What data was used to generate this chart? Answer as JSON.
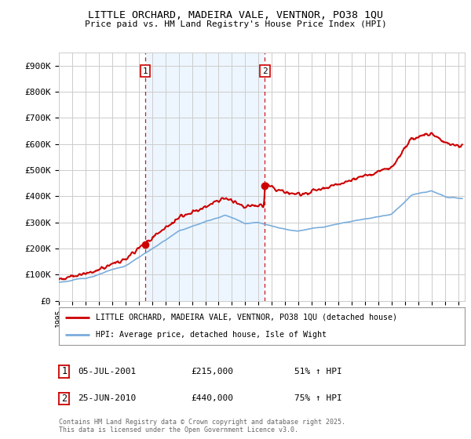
{
  "title": "LITTLE ORCHARD, MADEIRA VALE, VENTNOR, PO38 1QU",
  "subtitle": "Price paid vs. HM Land Registry's House Price Index (HPI)",
  "ylabel_ticks": [
    "£0",
    "£100K",
    "£200K",
    "£300K",
    "£400K",
    "£500K",
    "£600K",
    "£700K",
    "£800K",
    "£900K"
  ],
  "ytick_values": [
    0,
    100000,
    200000,
    300000,
    400000,
    500000,
    600000,
    700000,
    800000,
    900000
  ],
  "ylim": [
    0,
    950000
  ],
  "xlim_start": 1995.0,
  "xlim_end": 2025.5,
  "t_p1": 2001.504,
  "t_p2": 2010.479,
  "p1": 215000,
  "p2": 440000,
  "legend_line1": "LITTLE ORCHARD, MADEIRA VALE, VENTNOR, PO38 1QU (detached house)",
  "legend_line2": "HPI: Average price, detached house, Isle of Wight",
  "ann_label1": "1",
  "ann_date1": "05-JUL-2001",
  "ann_price1": "£215,000",
  "ann_hpi1": "51% ↑ HPI",
  "ann_label2": "2",
  "ann_date2": "25-JUN-2010",
  "ann_price2": "£440,000",
  "ann_hpi2": "75% ↑ HPI",
  "copyright": "Contains HM Land Registry data © Crown copyright and database right 2025.\nThis data is licensed under the Open Government Licence v3.0.",
  "red_color": "#cc0000",
  "blue_color": "#7aaddb",
  "shading_color": "#ddeeff",
  "bg_color": "#ffffff",
  "grid_color": "#cccccc",
  "xticks": [
    1995,
    1996,
    1997,
    1998,
    1999,
    2000,
    2001,
    2002,
    2003,
    2004,
    2005,
    2006,
    2007,
    2008,
    2009,
    2010,
    2011,
    2012,
    2013,
    2014,
    2015,
    2016,
    2017,
    2018,
    2019,
    2020,
    2021,
    2022,
    2023,
    2024,
    2025
  ]
}
